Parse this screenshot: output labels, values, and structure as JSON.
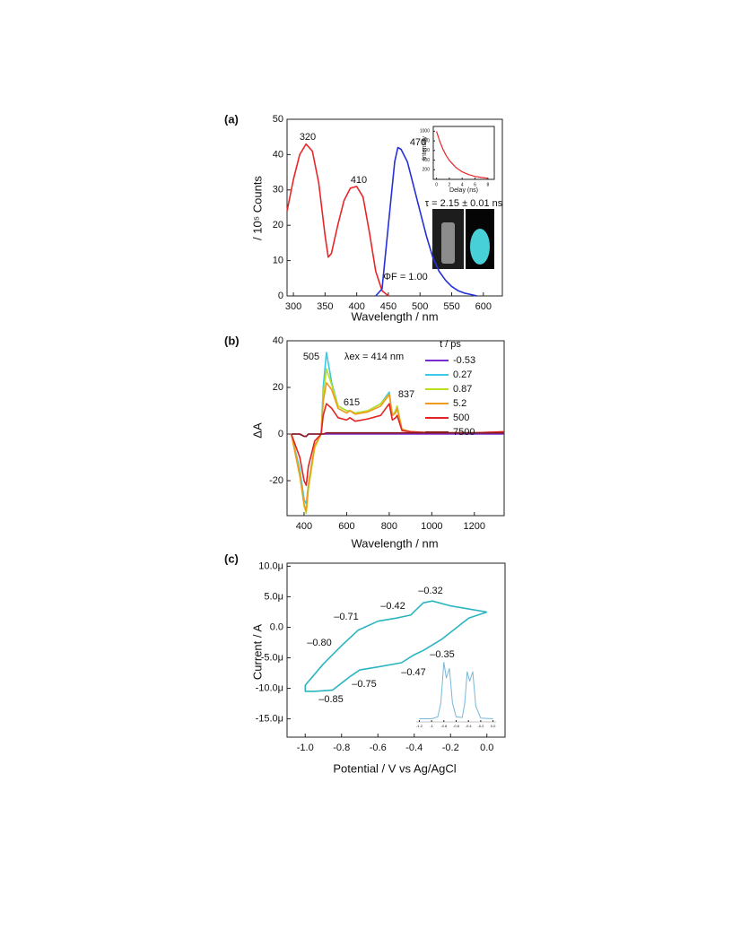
{
  "chart_data": [
    {
      "type": "line",
      "label": "(a)",
      "x_label": "Wavelength  / nm",
      "y_label": "/ 10⁵ Counts",
      "xlim": [
        290,
        630
      ],
      "xticks": [
        300,
        350,
        400,
        450,
        500,
        550,
        600
      ],
      "ylim": [
        0,
        50
      ],
      "yticks": [
        0,
        10,
        20,
        30,
        40,
        50
      ],
      "annotations": [
        "320",
        "410",
        "470",
        "τ = 2.15 ± 0.01 ns",
        "ΦF = 1.00"
      ],
      "series": [
        {
          "color": "#e8262a",
          "x": [
            290,
            300,
            310,
            320,
            330,
            340,
            350,
            355,
            360,
            370,
            380,
            390,
            400,
            410,
            420,
            430,
            440,
            450
          ],
          "values": [
            24,
            33,
            40,
            43,
            41,
            32,
            17,
            11,
            12,
            20,
            27,
            30.5,
            31,
            28,
            18,
            7,
            1.5,
            0
          ]
        },
        {
          "color": "#2430d8",
          "x": [
            430,
            440,
            450,
            460,
            465,
            470,
            480,
            490,
            500,
            510,
            520,
            530,
            540,
            550,
            560,
            570,
            580,
            590
          ],
          "values": [
            0,
            2,
            20,
            38,
            42,
            41.5,
            38,
            31,
            24,
            17,
            11,
            7,
            4.5,
            2.7,
            1.5,
            0.8,
            0.4,
            0
          ]
        }
      ]
    },
    {
      "type": "line",
      "x_label": "Delay (ns)",
      "y_label": "Intensity",
      "xlim": [
        -0.5,
        9
      ],
      "xticks": [
        0,
        2,
        4,
        6,
        8
      ],
      "ylim": [
        0,
        1100
      ],
      "yticks": [
        200,
        400,
        600,
        800,
        1000
      ],
      "series": [
        {
          "color": "#e8262a",
          "x": [
            0,
            0.5,
            1,
            1.5,
            2,
            3,
            4,
            5,
            6,
            7,
            8
          ],
          "values": [
            1000,
            792,
            628,
            498,
            395,
            248,
            156,
            98,
            61,
            39,
            24
          ]
        }
      ]
    },
    {
      "type": "line",
      "label": "(b)",
      "x_label": "Wavelength  / nm",
      "y_label": "ΔA",
      "xlim": [
        320,
        1340
      ],
      "xticks": [
        400,
        600,
        800,
        1000,
        1200
      ],
      "ylim": [
        -35,
        40
      ],
      "yticks": [
        -20,
        0,
        20,
        40
      ],
      "annotations": [
        "505",
        "λex = 414 nm",
        "615",
        "837"
      ],
      "legend_title": "t / ps",
      "x": [
        340,
        380,
        400,
        410,
        420,
        450,
        480,
        490,
        505,
        530,
        560,
        600,
        615,
        640,
        700,
        760,
        800,
        815,
        830,
        837,
        860,
        900,
        1000,
        1100,
        1200,
        1340
      ],
      "series": [
        {
          "name": "-0.53",
          "color": "#7a2bd0",
          "values": [
            0,
            0,
            -1,
            -1,
            0,
            0,
            0,
            0,
            0,
            0,
            0,
            0,
            0,
            0,
            0,
            0,
            0,
            0,
            0,
            0,
            0,
            0,
            0,
            0,
            0,
            0
          ]
        },
        {
          "name": "0.27",
          "color": "#3ec8e8",
          "values": [
            0,
            -15,
            -28,
            -30,
            -22,
            -5,
            0,
            20,
            35,
            22,
            12,
            10,
            10,
            9,
            10,
            13,
            18,
            8,
            10,
            12,
            2,
            1,
            0.5,
            0.5,
            0.5,
            0.5
          ]
        },
        {
          "name": "0.87",
          "color": "#b8e020",
          "values": [
            0,
            -17,
            -31,
            -34,
            -24,
            -6,
            0,
            17,
            28,
            21,
            12,
            10,
            10,
            9,
            10,
            13,
            17,
            8,
            10,
            12,
            2,
            1,
            0.5,
            0.5,
            0.5,
            0.5
          ]
        },
        {
          "name": "5.2",
          "color": "#f29a1c",
          "values": [
            0,
            -18,
            -30,
            -33,
            -22,
            -5,
            0,
            14,
            22,
            19,
            11,
            9,
            10,
            8.5,
            9.5,
            12,
            17,
            8,
            9,
            11,
            2,
            1,
            0.5,
            0.5,
            0.5,
            1
          ]
        },
        {
          "name": "500",
          "color": "#e22424",
          "values": [
            0,
            -10,
            -20,
            -22,
            -14,
            -3,
            0,
            8,
            13,
            11,
            7,
            6,
            7,
            5.5,
            6.5,
            8,
            13,
            6,
            7,
            8,
            1.5,
            1,
            0.5,
            0.5,
            0.5,
            1
          ]
        },
        {
          "name": "7500",
          "color": "#8b1a1a",
          "values": [
            0,
            0,
            -1,
            -1,
            0,
            0,
            0,
            0,
            0.5,
            0.5,
            0.5,
            0.5,
            0.5,
            0.5,
            0.5,
            0.5,
            0.5,
            0.5,
            0.5,
            0.5,
            0.5,
            0.5,
            0.5,
            0.5,
            0.5,
            0.5
          ]
        }
      ]
    },
    {
      "type": "line",
      "label": "(c)",
      "x_label": "Potential  / V vs Ag/AgCl",
      "y_label": "Current  / A",
      "xlim": [
        -1.1,
        0.1
      ],
      "xticks": [
        {
          "value": -1.0,
          "label": "-1.0"
        },
        -0.8,
        -0.6,
        -0.4,
        -0.2,
        {
          "value": 0.0,
          "label": "0.0"
        }
      ],
      "ylim": [
        -1.8e-05,
        1.05e-05
      ],
      "yticks": [
        {
          "value": -1.5e-05,
          "label": "-15.0μ"
        },
        {
          "value": -1e-05,
          "label": "-10.0μ"
        },
        {
          "value": -5e-06,
          "label": "-5.0μ"
        },
        {
          "value": 0,
          "label": "0.0"
        },
        {
          "value": 5e-06,
          "label": "5.0μ"
        },
        {
          "value": 1e-05,
          "label": "10.0μ"
        }
      ],
      "annotations": [
        "–0.32",
        "–0.42",
        "–0.71",
        "–0.80",
        "–0.35",
        "–0.47",
        "–0.75",
        "–0.85"
      ],
      "series": [
        {
          "color": "#2bb5c0",
          "x": [
            0.0,
            -0.1,
            -0.2,
            -0.3,
            -0.35,
            -0.42,
            -0.5,
            -0.6,
            -0.71,
            -0.8,
            -0.9,
            -1.0,
            -1.0,
            -0.95,
            -0.85,
            -0.75,
            -0.7,
            -0.6,
            -0.47,
            -0.4,
            -0.35,
            -0.25,
            -0.1,
            0.0
          ],
          "values": [
            2.5e-06,
            3e-06,
            3.5e-06,
            4.3e-06,
            4e-06,
            2e-06,
            1.5e-06,
            1e-06,
            -5e-07,
            -3e-06,
            -6e-06,
            -9.5e-06,
            -1.05e-05,
            -1.05e-05,
            -1.03e-05,
            -8e-06,
            -7e-06,
            -6.5e-06,
            -5.8e-06,
            -4.5e-06,
            -3.8e-06,
            -2e-06,
            1.5e-06,
            2.5e-06
          ]
        }
      ]
    },
    {
      "type": "line",
      "xlim": [
        -1.25,
        0.05
      ],
      "xticks": [
        -1.2,
        -1.0,
        -0.8,
        -0.6,
        -0.4,
        -0.2,
        {
          "value": 0.0,
          "label": "0.0"
        }
      ],
      "ylim": [
        0,
        1
      ],
      "series": [
        {
          "color": "#7ab7d8",
          "x": [
            -1.2,
            -1.0,
            -0.9,
            -0.85,
            -0.8,
            -0.76,
            -0.71,
            -0.66,
            -0.6,
            -0.5,
            -0.46,
            -0.42,
            -0.38,
            -0.33,
            -0.28,
            -0.2,
            0.0
          ],
          "values": [
            0.05,
            0.05,
            0.08,
            0.3,
            0.95,
            0.7,
            0.85,
            0.3,
            0.08,
            0.07,
            0.3,
            0.8,
            0.65,
            0.8,
            0.25,
            0.06,
            0.05
          ]
        }
      ]
    }
  ]
}
